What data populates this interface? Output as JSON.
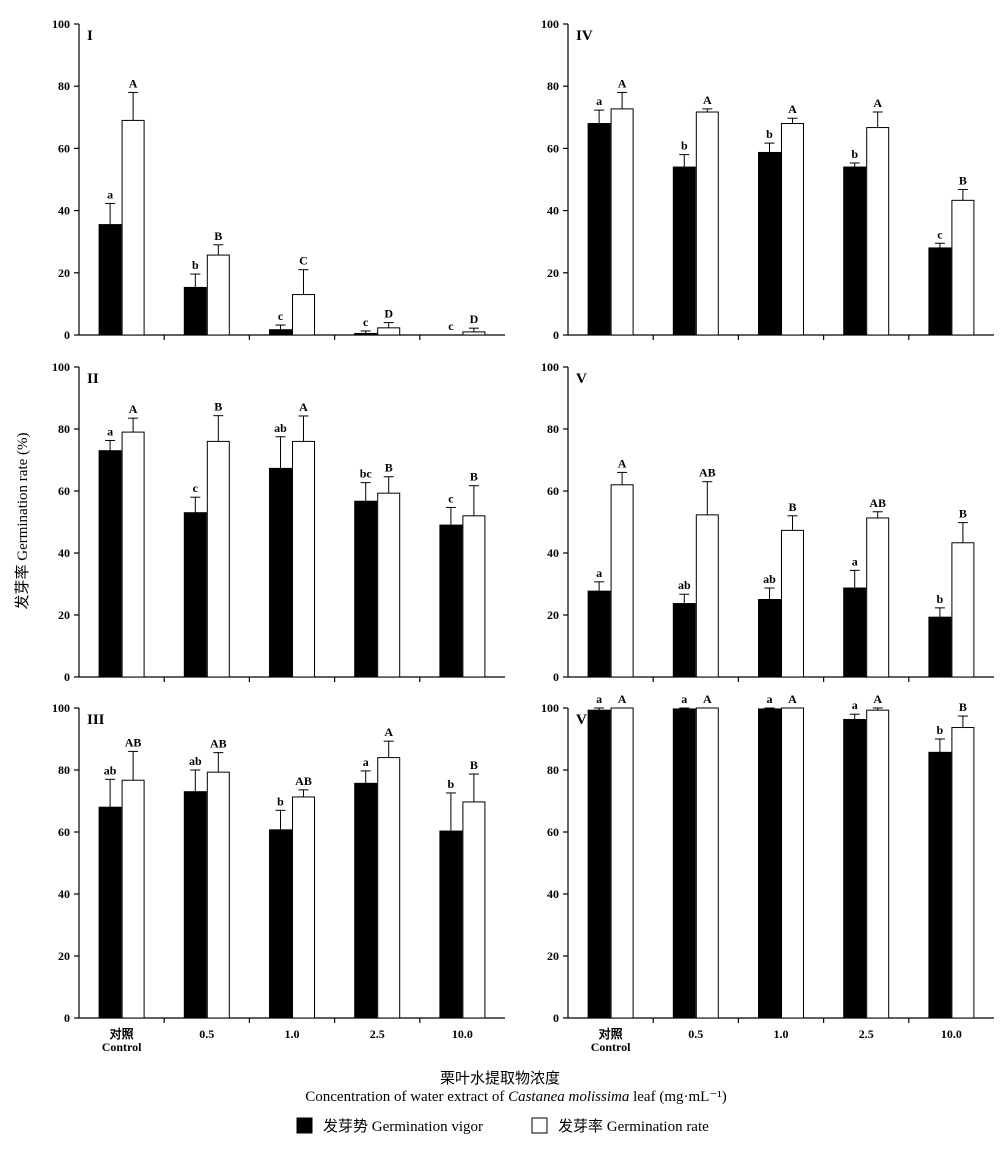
{
  "chart_data": {
    "type": "bar",
    "ylabel": "发芽率 Germination rate (%)",
    "xlabel_cn": "栗叶水提取物浓度",
    "xlabel_en_prefix": "Concentration of water extract of ",
    "xlabel_en_species": "Castanea molissima",
    "xlabel_en_suffix": " leaf (mg·mL⁻¹)",
    "categories": [
      "对照|Control",
      "0.5",
      "1.0",
      "2.5",
      "10.0"
    ],
    "ylim": [
      0,
      100
    ],
    "yticks": [
      0,
      20,
      40,
      60,
      80,
      100
    ],
    "legend": [
      {
        "name": "发芽势 Germination vigor",
        "fill": "#000000"
      },
      {
        "name": "发芽率 Germination rate",
        "fill": "#ffffff"
      }
    ],
    "panels": [
      {
        "label": "I",
        "series": [
          {
            "name": "发芽势 Germination vigor",
            "values": [
              35.5,
              15.3,
              1.7,
              0.5,
              0
            ],
            "errors": [
              6.8,
              4.3,
              1.5,
              0.8,
              0
            ],
            "letters": [
              "a",
              "b",
              "c",
              "c",
              "c"
            ]
          },
          {
            "name": "发芽率 Germination rate",
            "values": [
              69,
              25.7,
              13,
              2.3,
              1
            ],
            "errors": [
              9,
              3.3,
              8,
              1.7,
              1.2
            ],
            "letters": [
              "A",
              "B",
              "C",
              "D",
              "D"
            ]
          }
        ]
      },
      {
        "label": "IV",
        "series": [
          {
            "name": "发芽势 Germination vigor",
            "values": [
              68,
              54,
              58.7,
              54,
              28
            ],
            "errors": [
              4.3,
              4,
              3,
              1.3,
              1.5
            ],
            "letters": [
              "a",
              "b",
              "b",
              "b",
              "c"
            ]
          },
          {
            "name": "发芽率 Germination rate",
            "values": [
              72.7,
              71.7,
              68,
              66.7,
              43.3
            ],
            "errors": [
              5.3,
              1,
              1.7,
              5,
              3.5
            ],
            "letters": [
              "A",
              "A",
              "A",
              "A",
              "B"
            ]
          }
        ]
      },
      {
        "label": "II",
        "series": [
          {
            "name": "发芽势 Germination vigor",
            "values": [
              73,
              53,
              67.3,
              56.7,
              49
            ],
            "errors": [
              3.3,
              5,
              10.2,
              6,
              5.7
            ],
            "letters": [
              "a",
              "c",
              "ab",
              "bc",
              "c"
            ]
          },
          {
            "name": "发芽率 Germination rate",
            "values": [
              79,
              76,
              76,
              59.3,
              52
            ],
            "errors": [
              4.5,
              8.3,
              8.2,
              5.3,
              9.7
            ],
            "letters": [
              "A",
              "B",
              "A",
              "B",
              "B"
            ]
          }
        ]
      },
      {
        "label": "V",
        "series": [
          {
            "name": "发芽势 Germination vigor",
            "values": [
              27.7,
              23.7,
              25,
              28.7,
              19.3
            ],
            "errors": [
              3,
              3,
              3.7,
              5.7,
              3
            ],
            "letters": [
              "a",
              "ab",
              "ab",
              "a",
              "b"
            ]
          },
          {
            "name": "发芽率 Germination rate",
            "values": [
              62,
              52.3,
              47.3,
              51.3,
              43.3
            ],
            "errors": [
              4,
              10.7,
              4.7,
              2,
              6.5
            ],
            "letters": [
              "A",
              "AB",
              "B",
              "AB",
              "B"
            ]
          }
        ]
      },
      {
        "label": "III",
        "series": [
          {
            "name": "发芽势 Germination vigor",
            "values": [
              68,
              73,
              60.7,
              75.7,
              60.3
            ],
            "errors": [
              9,
              7,
              6.3,
              4,
              12.3
            ],
            "letters": [
              "ab",
              "ab",
              "b",
              "a",
              "b"
            ]
          },
          {
            "name": "发芽率 Germination rate",
            "values": [
              76.7,
              79.3,
              71.3,
              84,
              69.7
            ],
            "errors": [
              9.3,
              6.3,
              2.3,
              5.3,
              9
            ],
            "letters": [
              "AB",
              "AB",
              "AB",
              "A",
              "B"
            ]
          }
        ]
      },
      {
        "label": "VI",
        "series": [
          {
            "name": "发芽势 Germination vigor",
            "values": [
              99.3,
              99.7,
              99.7,
              96.3,
              85.7
            ],
            "errors": [
              0.7,
              0.3,
              0.3,
              1.7,
              4.3
            ],
            "letters": [
              "a",
              "a",
              "a",
              "a",
              "b"
            ]
          },
          {
            "name": "发芽率 Germination rate",
            "values": [
              100,
              100,
              100,
              99.3,
              93.7
            ],
            "errors": [
              0,
              0,
              0,
              0.7,
              3.7
            ],
            "letters": [
              "A",
              "A",
              "A",
              "A",
              "B"
            ]
          }
        ]
      }
    ]
  }
}
